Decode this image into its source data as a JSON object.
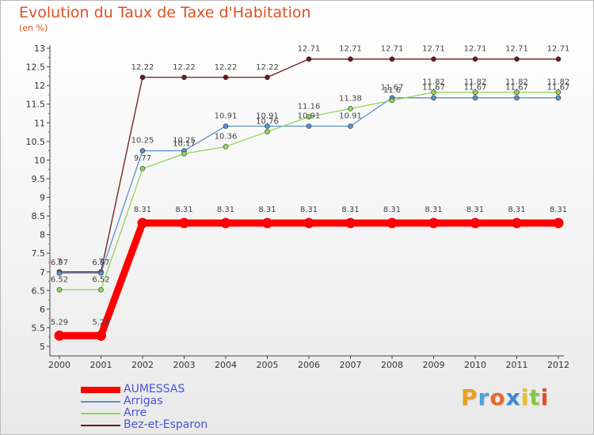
{
  "chart_data": {
    "type": "line",
    "title": "Evolution du Taux de Taxe d'Habitation",
    "ylabel": "(en %)",
    "xlabel": "",
    "ylim": [
      5,
      13
    ],
    "yticks": [
      5,
      5.5,
      6,
      6.5,
      7,
      7.5,
      8,
      8.5,
      9,
      9.5,
      10,
      10.5,
      11,
      11.5,
      12,
      12.5,
      13
    ],
    "grid": false,
    "legend_position": "bottom-left",
    "x": [
      "2000",
      "2001",
      "2002",
      "2003",
      "2004",
      "2005",
      "2006",
      "2007",
      "2008",
      "2009",
      "2010",
      "2011",
      "2012"
    ],
    "series": [
      {
        "name": "AUMESSAS",
        "color": "#ff0000",
        "values": [
          5.29,
          5.29,
          8.31,
          8.31,
          8.31,
          8.31,
          8.31,
          8.31,
          8.31,
          8.31,
          8.31,
          8.31,
          8.31
        ],
        "labels": [
          "5.29",
          "5.29",
          "8.31",
          "8.31",
          "8.31",
          "8.31",
          "8.31",
          "8.31",
          "8.31",
          "8.31",
          "8.31",
          "8.31",
          "8.31"
        ]
      },
      {
        "name": "Arrigas",
        "color": "#5b8fce",
        "values": [
          6.97,
          6.97,
          10.25,
          10.25,
          10.91,
          10.91,
          10.91,
          10.91,
          11.67,
          11.67,
          11.67,
          11.67,
          11.67
        ],
        "labels": [
          "6.97",
          "6.97",
          "10.25",
          "10.25",
          "10.91",
          "10.91",
          "10.91",
          "10.91",
          "11.67",
          "11.67",
          "11.67",
          "11.67",
          "11.67"
        ]
      },
      {
        "name": "Arre",
        "color": "#8fd65a",
        "values": [
          6.52,
          6.52,
          9.77,
          10.17,
          10.36,
          10.76,
          11.16,
          11.38,
          11.6,
          11.82,
          11.82,
          11.82,
          11.82
        ],
        "labels": [
          "6.52",
          "6.52",
          "9.77",
          "10.17",
          "10.36",
          "10.76",
          "11.16",
          "11.38",
          "11.6",
          "11.82",
          "11.82",
          "11.82",
          "11.82"
        ]
      },
      {
        "name": "Bez-et-Esparon",
        "color": "#6b1a1a",
        "values": [
          7,
          7,
          12.22,
          12.22,
          12.22,
          12.22,
          12.71,
          12.71,
          12.71,
          12.71,
          12.71,
          12.71,
          12.71
        ],
        "labels": [
          "7",
          "7",
          "12.22",
          "12.22",
          "12.22",
          "12.22",
          "12.71",
          "12.71",
          "12.71",
          "12.71",
          "12.71",
          "12.71",
          "12.71"
        ]
      }
    ]
  },
  "brand": {
    "logo_text": "Proxiti",
    "logo_colors": [
      "#e8a020",
      "#4aa4d8",
      "#e8682a",
      "#3e8ad0",
      "#f0c020",
      "#8ac53e",
      "#e84a2a"
    ]
  }
}
